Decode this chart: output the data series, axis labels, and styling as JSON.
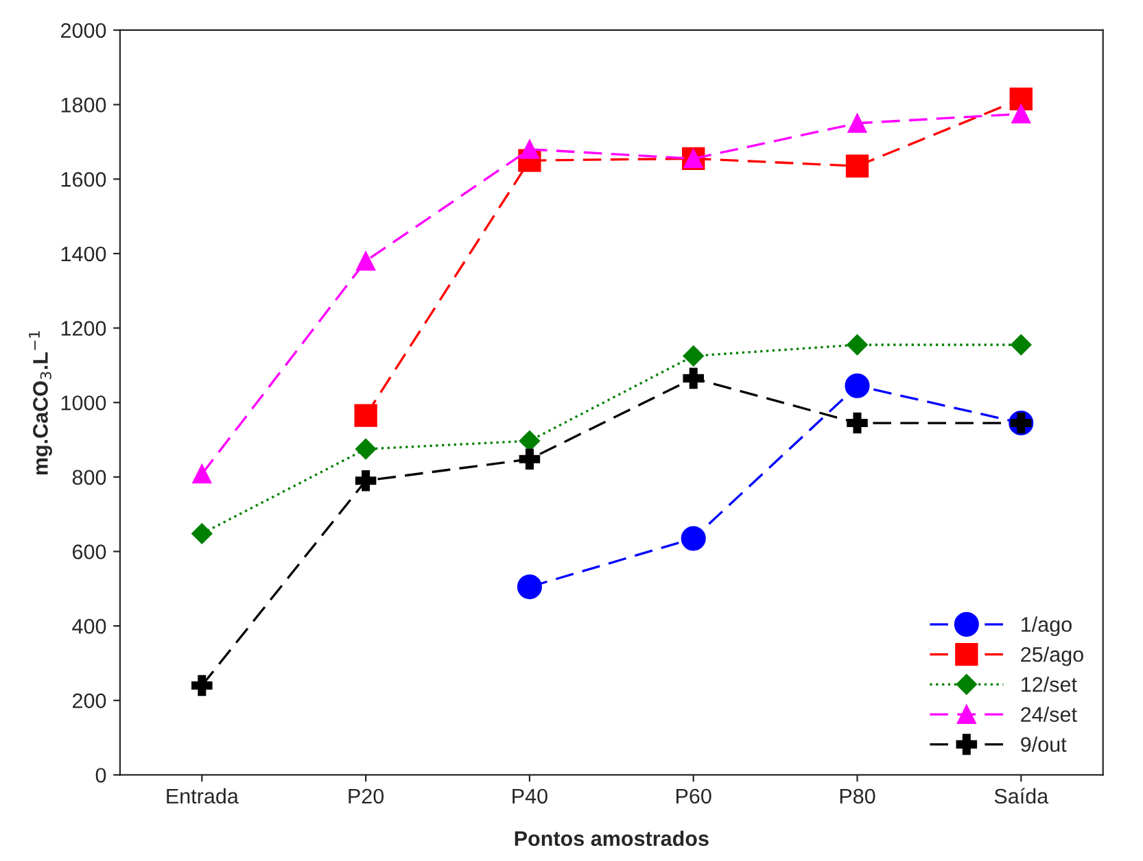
{
  "chart_data": {
    "type": "line",
    "xlabel": "Pontos amostrados",
    "ylabel": "mg.CaCO$_{3}$.L$^{−1}$",
    "categories": [
      "Entrada",
      "P20",
      "P40",
      "P60",
      "P80",
      "Saída"
    ],
    "ylim": [
      0,
      2000
    ],
    "yticks": [
      0,
      200,
      400,
      600,
      800,
      1000,
      1200,
      1400,
      1600,
      1800,
      2000
    ],
    "grid": false,
    "legend": "bottom right",
    "series": [
      {
        "name": "1/ago",
        "color": "#0000ff",
        "marker": "circle",
        "line_style": "dashed",
        "values": [
          null,
          null,
          505,
          635,
          1045,
          945
        ]
      },
      {
        "name": "25/ago",
        "color": "#ff0000",
        "marker": "square",
        "line_style": "dashed",
        "values": [
          null,
          965,
          1650,
          1655,
          1635,
          1815
        ]
      },
      {
        "name": "12/set",
        "color": "#008000",
        "marker": "diamond",
        "line_style": "dotted",
        "values": [
          648,
          875,
          897,
          1125,
          1155,
          1155
        ]
      },
      {
        "name": "24/set",
        "color": "#ff00ff",
        "marker": "triangle",
        "line_style": "dashed",
        "values": [
          808,
          1380,
          1680,
          1655,
          1750,
          1775
        ]
      },
      {
        "name": "9/out",
        "color": "#000000",
        "marker": "cross",
        "line_style": "dashed",
        "values": [
          240,
          790,
          848,
          1065,
          945,
          945
        ]
      }
    ]
  }
}
